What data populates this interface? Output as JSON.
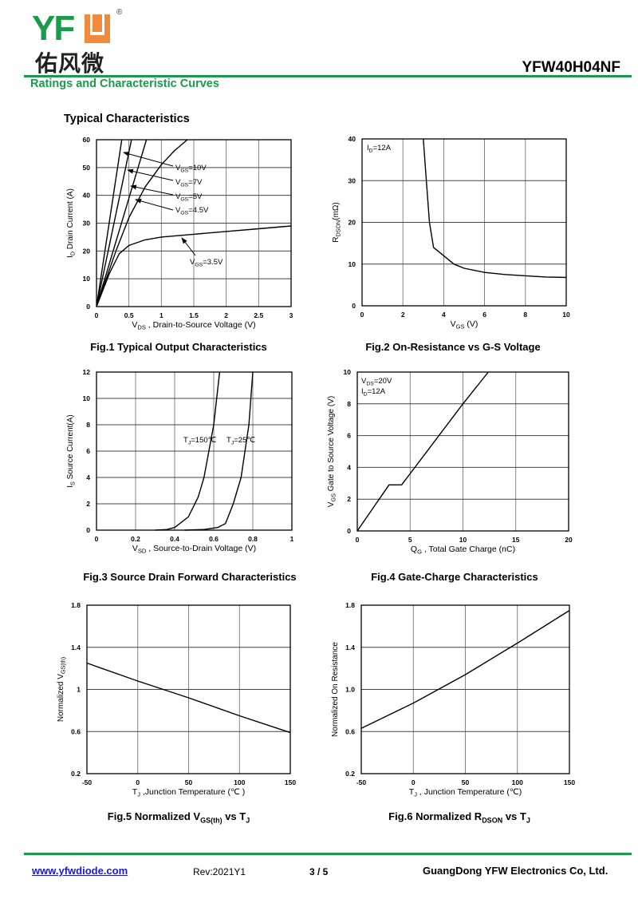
{
  "header": {
    "logo_text": "YFW",
    "logo_chinese": "佑风微",
    "logo_registered": "®",
    "part_number": "YFW40H04NF",
    "section_title": "Ratings and Characteristic Curves",
    "subtitle": "Typical Characteristics",
    "brand_colors": {
      "green": "#1a9b4a",
      "orange": "#f08a3c"
    }
  },
  "footer": {
    "url": "www.yfwdiode.com",
    "revision": "Rev:2021Y1",
    "page": "3 / 5",
    "company": "GuangDong YFW Electronics Co, Ltd."
  },
  "chart_data": [
    {
      "type": "line",
      "caption": [
        "Fig.1 Typical Output Characteristics"
      ],
      "xlabel": [
        "V",
        "DS",
        " , Drain-to-Source  Voltage (V)"
      ],
      "ylabel": [
        "I",
        "D",
        " Drain Current  (A)"
      ],
      "xlim": [
        0,
        3
      ],
      "ylim": [
        0,
        60
      ],
      "grid": true,
      "xticks": [
        "0",
        "0.5",
        "1",
        "1.5",
        "2",
        "2.5",
        "3"
      ],
      "yticks": [
        "0",
        "10",
        "20",
        "30",
        "40",
        "50",
        "60"
      ],
      "series": [
        {
          "name": [
            "V",
            "GS",
            "=10V"
          ],
          "points": [
            [
              0,
              0
            ],
            [
              0.39,
              60
            ]
          ]
        },
        {
          "name": [
            "V",
            "GS",
            "=7V"
          ],
          "points": [
            [
              0,
              0
            ],
            [
              0.54,
              60
            ]
          ]
        },
        {
          "name": [
            "V",
            "GS",
            "=5V"
          ],
          "points": [
            [
              0,
              0
            ],
            [
              0.77,
              60
            ]
          ]
        },
        {
          "name": [
            "V",
            "GS",
            "=4.5V"
          ],
          "points": [
            [
              0,
              0
            ],
            [
              0.3,
              20
            ],
            [
              0.5,
              32
            ],
            [
              0.75,
              43
            ],
            [
              1,
              51
            ],
            [
              1.2,
              56
            ],
            [
              1.4,
              60
            ]
          ]
        },
        {
          "name": [
            "V",
            "GS",
            "=3.5V"
          ],
          "points": [
            [
              0,
              0
            ],
            [
              0.2,
              12
            ],
            [
              0.35,
              19
            ],
            [
              0.5,
              22
            ],
            [
              0.75,
              24
            ],
            [
              1,
              25
            ],
            [
              1.5,
              26
            ],
            [
              2,
              27
            ],
            [
              2.5,
              28
            ],
            [
              3,
              29
            ]
          ]
        }
      ],
      "annotations": []
    },
    {
      "type": "line",
      "caption": [
        "Fig.2 On-Resistance vs G-S Voltage"
      ],
      "xlabel": [
        "V",
        "GS",
        " (V)"
      ],
      "ylabel": [
        "R",
        "DSON",
        "(mΩ)"
      ],
      "xlim": [
        0,
        10
      ],
      "ylim": [
        0,
        40
      ],
      "grid": true,
      "xticks": [
        "0",
        "2",
        "4",
        "6",
        "8",
        "10"
      ],
      "yticks": [
        "0",
        "10",
        "20",
        "30",
        "40"
      ],
      "series": [
        {
          "points": [
            [
              3,
              40
            ],
            [
              3.15,
              30
            ],
            [
              3.3,
              20
            ],
            [
              3.5,
              14
            ],
            [
              4,
              12
            ],
            [
              4.5,
              10
            ],
            [
              5,
              9
            ],
            [
              6,
              8
            ],
            [
              7,
              7.5
            ],
            [
              8,
              7.2
            ],
            [
              9,
              6.9
            ],
            [
              10,
              6.8
            ]
          ]
        }
      ],
      "annotations": [
        [
          "I",
          "D",
          "=12A"
        ]
      ]
    },
    {
      "type": "line",
      "caption": [
        "Fig.3 Source Drain Forward Characteristics"
      ],
      "xlabel": [
        "V",
        "SD",
        " , Source-to-Drain Voltage (V)"
      ],
      "ylabel": [
        "I",
        "S",
        " Source Current(A)"
      ],
      "xlim": [
        0,
        1
      ],
      "ylim": [
        0,
        12
      ],
      "grid": true,
      "xticks": [
        "0",
        "0.2",
        "0.4",
        "0.6",
        "0.8",
        "1"
      ],
      "yticks": [
        "0",
        "2",
        "4",
        "6",
        "8",
        "10",
        "12"
      ],
      "series": [
        {
          "name": [
            "T",
            "J",
            "=150℃"
          ],
          "points": [
            [
              0.3,
              0
            ],
            [
              0.36,
              0.05
            ],
            [
              0.4,
              0.2
            ],
            [
              0.47,
              1
            ],
            [
              0.52,
              2.5
            ],
            [
              0.55,
              4
            ],
            [
              0.575,
              6
            ],
            [
              0.6,
              8
            ],
            [
              0.615,
              10
            ],
            [
              0.63,
              12
            ]
          ]
        },
        {
          "name": [
            "T",
            "J",
            "=25℃"
          ],
          "points": [
            [
              0.45,
              0
            ],
            [
              0.55,
              0.05
            ],
            [
              0.62,
              0.2
            ],
            [
              0.66,
              0.5
            ],
            [
              0.7,
              2
            ],
            [
              0.74,
              4
            ],
            [
              0.765,
              6.5
            ],
            [
              0.78,
              8
            ],
            [
              0.8,
              12
            ]
          ]
        }
      ],
      "annotations": []
    },
    {
      "type": "line",
      "caption": [
        "Fig.4 Gate-Charge Characteristics"
      ],
      "xlabel": [
        "Q",
        "G",
        " , Total Gate Charge  (nC)"
      ],
      "ylabel": [
        "V",
        "GS",
        "  Gate to Source Voltage (V)"
      ],
      "xlim": [
        0,
        20
      ],
      "ylim": [
        0,
        10
      ],
      "grid": true,
      "xticks": [
        "0",
        "5",
        "10",
        "15",
        "20"
      ],
      "yticks": [
        "0",
        "2",
        "4",
        "6",
        "8",
        "10"
      ],
      "series": [
        {
          "points": [
            [
              0,
              0
            ],
            [
              3,
              2.9
            ],
            [
              4.2,
              2.9
            ],
            [
              10,
              8
            ],
            [
              12.4,
              10
            ]
          ]
        }
      ],
      "annotations": [
        [
          "V",
          "DS",
          "=20V"
        ],
        [
          "I",
          "D",
          "=12A"
        ]
      ]
    },
    {
      "type": "line",
      "caption": [
        "Fig.5 Normalized V",
        "GS(th)",
        " vs T",
        "J"
      ],
      "xlabel": [
        "T",
        "J",
        " ,Junction Temperature (℃ )"
      ],
      "ylabel": [
        "Normalized  V",
        "GS(th)",
        ""
      ],
      "xlim": [
        -50,
        150
      ],
      "ylim": [
        0.2,
        1.8
      ],
      "grid": true,
      "xticks": [
        "-50",
        "0",
        "50",
        "100",
        "150"
      ],
      "yticks": [
        "0.2",
        "0.6",
        "1",
        "1.4",
        "1.8"
      ],
      "series": [
        {
          "points": [
            [
              -50,
              1.25
            ],
            [
              0,
              1.08
            ],
            [
              50,
              0.92
            ],
            [
              100,
              0.75
            ],
            [
              150,
              0.59
            ]
          ]
        }
      ],
      "annotations": []
    },
    {
      "type": "line",
      "caption": [
        "Fig.6 Normalized R",
        "DSON",
        " vs T",
        "J"
      ],
      "xlabel": [
        "T",
        "J",
        " , Junction Temperature (℃)"
      ],
      "ylabel": [
        "Normalized  On Resistance"
      ],
      "xlim": [
        -50,
        150
      ],
      "ylim": [
        0.2,
        1.8
      ],
      "grid": true,
      "xticks": [
        "-50",
        "0",
        "50",
        "100",
        "150"
      ],
      "yticks": [
        "0.2",
        "0.6",
        "1.0",
        "1.4",
        "1.8"
      ],
      "series": [
        {
          "points": [
            [
              -50,
              0.63
            ],
            [
              0,
              0.87
            ],
            [
              50,
              1.14
            ],
            [
              100,
              1.44
            ],
            [
              150,
              1.75
            ]
          ]
        }
      ],
      "annotations": []
    }
  ]
}
